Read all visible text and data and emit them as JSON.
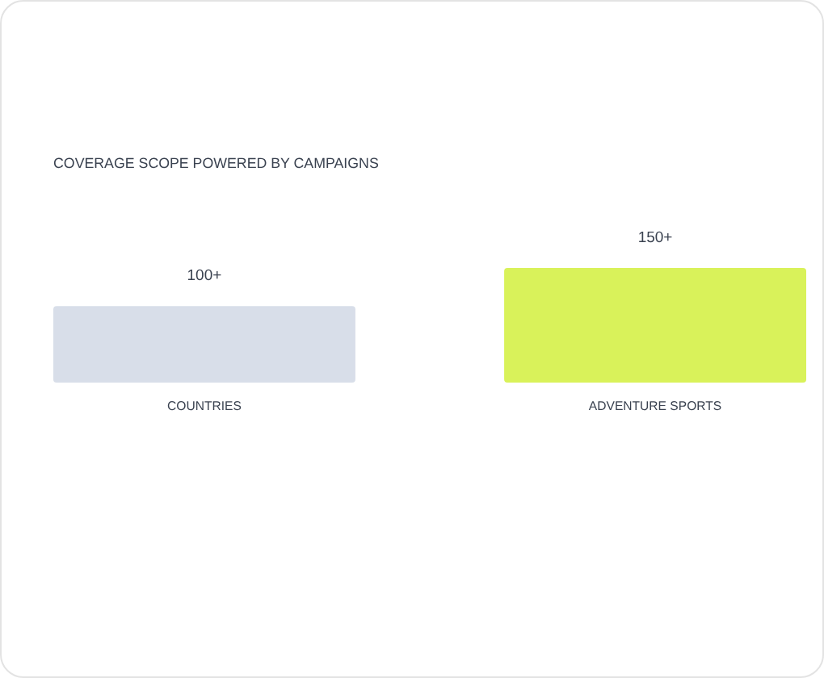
{
  "chart_data": {
    "type": "bar",
    "title": "COVERAGE SCOPE POWERED BY CAMPAIGNS",
    "categories": [
      "COUNTRIES",
      "ADVENTURE SPORTS"
    ],
    "values": [
      100,
      150
    ],
    "colors": [
      "#d8dee9",
      "#d9f25a"
    ],
    "value_labels": [
      "100+",
      "150+"
    ]
  }
}
